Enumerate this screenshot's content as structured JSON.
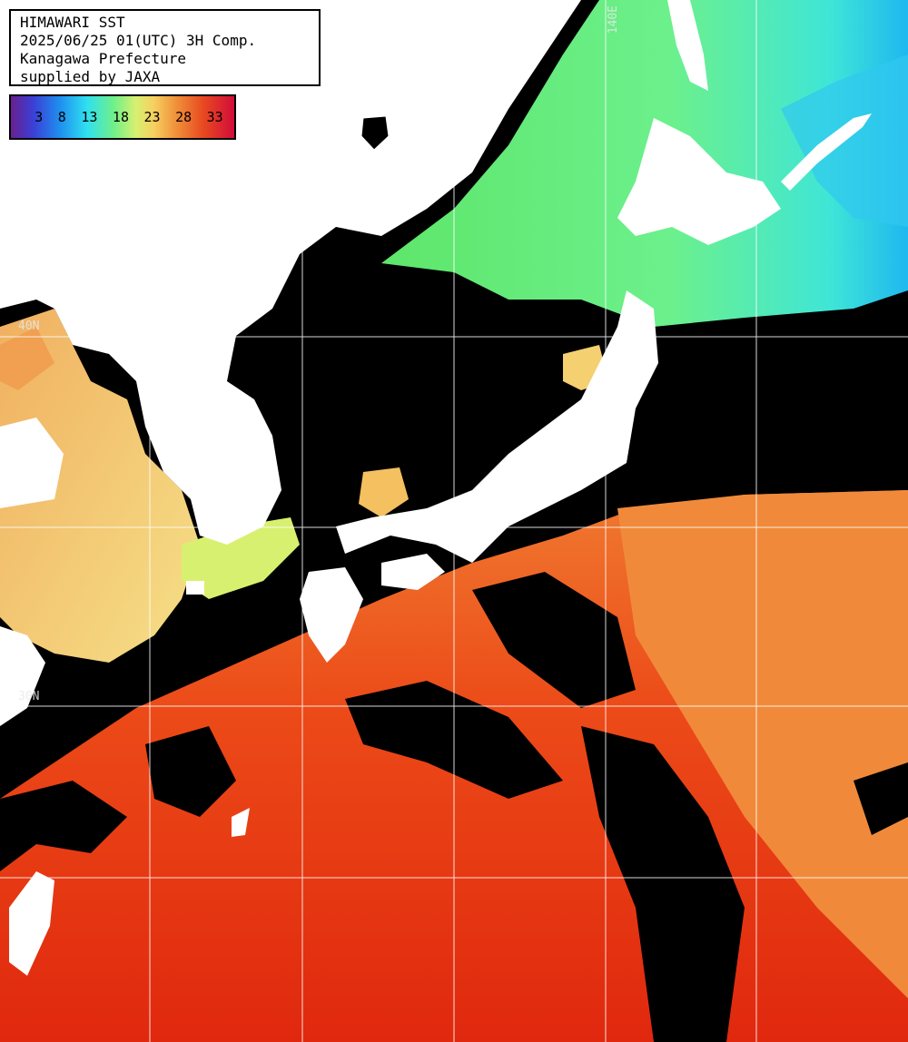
{
  "info": {
    "title": "HIMAWARI SST",
    "datetime": "2025/06/25 01(UTC) 3H Comp.",
    "region": "Kanagawa Prefecture",
    "credit": "supplied by JAXA"
  },
  "legend": {
    "ticks": [
      "3",
      "8",
      "13",
      "18",
      "23",
      "28",
      "33"
    ]
  },
  "grid_labels": {
    "lon_140": "140E",
    "lat_40": "40N",
    "lat_30": "30N"
  }
}
